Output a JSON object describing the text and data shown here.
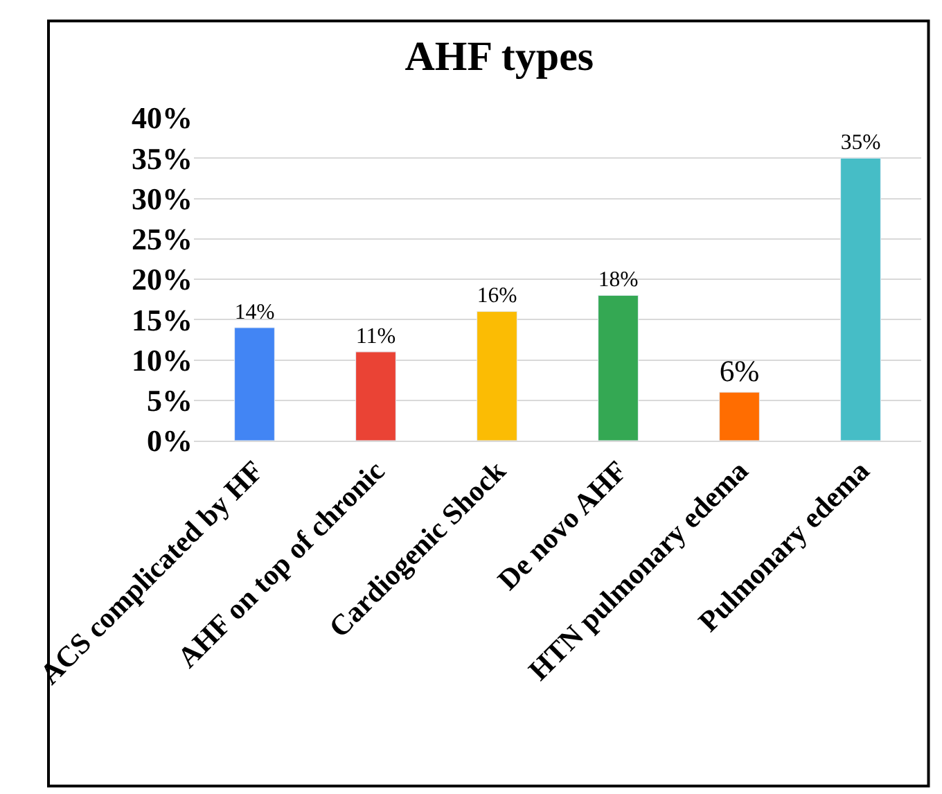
{
  "chart_data": {
    "type": "bar",
    "title": "AHF types",
    "categories": [
      "ACS complicated by HF",
      "AHF on top of chronic",
      "Cardiogenic Shock",
      "De novo AHF",
      "HTN pulmonary edema",
      "Pulmonary edema"
    ],
    "values": [
      14,
      11,
      16,
      18,
      6,
      35
    ],
    "colors": [
      "#4285f4",
      "#ea4335",
      "#fbbc04",
      "#34a853",
      "#ff6d01",
      "#46bdc6"
    ],
    "value_labels": [
      "14%",
      "11%",
      "16%",
      "18%",
      "6%",
      "35%"
    ],
    "ylim": [
      0,
      40
    ],
    "yticks": [
      {
        "value": 0,
        "label": "0%"
      },
      {
        "value": 5,
        "label": "5%"
      },
      {
        "value": 10,
        "label": "10%"
      },
      {
        "value": 15,
        "label": "15%"
      },
      {
        "value": 20,
        "label": "20%"
      },
      {
        "value": 25,
        "label": "25%"
      },
      {
        "value": 30,
        "label": "30%"
      },
      {
        "value": 35,
        "label": "35%"
      },
      {
        "value": 40,
        "label": "40%"
      }
    ],
    "grid": "y"
  }
}
